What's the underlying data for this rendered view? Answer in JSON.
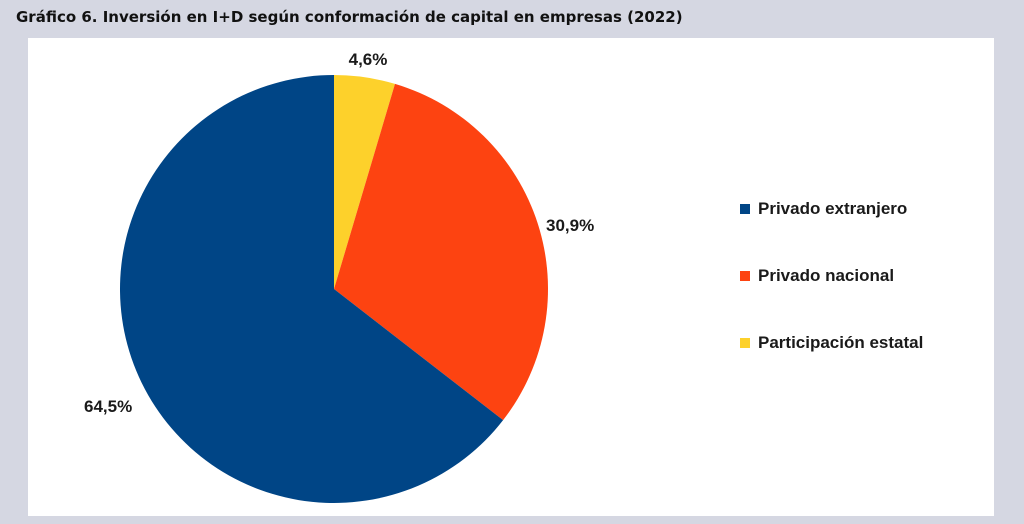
{
  "title": "Gráfico 6. Inversión en I+D según conformación de capital en empresas (2022)",
  "chart_data": {
    "type": "pie",
    "title": "Gráfico 6. Inversión en I+D según conformación de capital en empresas (2022)",
    "start": "12 o'clock, clockwise",
    "legend_position": "right",
    "slices": [
      {
        "label": "Participación estatal",
        "value": 4.6,
        "value_label": "4,6%",
        "color": "#fdd12b"
      },
      {
        "label": "Privado nacional",
        "value": 30.9,
        "value_label": "30,9%",
        "color": "#fd4311"
      },
      {
        "label": "Privado extranjero",
        "value": 64.5,
        "value_label": "64,5%",
        "color": "#004586"
      }
    ]
  },
  "legend": [
    {
      "label": "Privado extranjero",
      "color": "#004586"
    },
    {
      "label": "Privado nacional",
      "color": "#fd4311"
    },
    {
      "label": "Participación estatal",
      "color": "#fdd12b"
    }
  ]
}
